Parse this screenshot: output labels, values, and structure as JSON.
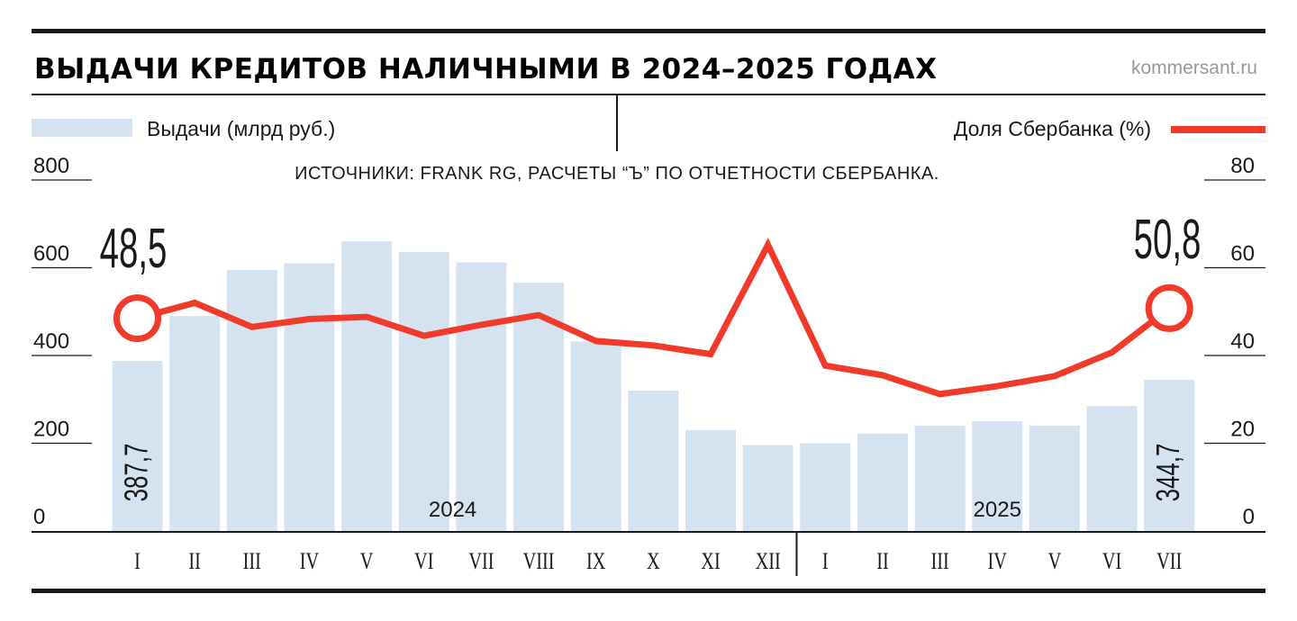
{
  "header": {
    "title": "ВЫДАЧИ КРЕДИТОВ НАЛИЧНЫМИ В 2024–2025 ГОДАХ",
    "brand": "kommersant.ru"
  },
  "legend": {
    "bars": "Выдачи (млрд руб.)",
    "line": "Доля Сбербанка (%)"
  },
  "source": "ИСТОЧНИКИ: FRANK RG, РАСЧЕТЫ “Ъ” ПО ОТЧЕТНОСТИ СБЕРБАНКА.",
  "colors": {
    "bar": "#d5e3f0",
    "line": "#f23a2a",
    "ink": "#1a1a1a"
  },
  "chart_data": {
    "type": "bar",
    "title": "ВЫДАЧИ КРЕДИТОВ НАЛИЧНЫМИ В 2024–2025 ГОДАХ",
    "categories": [
      "I",
      "II",
      "III",
      "IV",
      "V",
      "VI",
      "VII",
      "VIII",
      "IX",
      "X",
      "XI",
      "XII",
      "I",
      "II",
      "III",
      "IV",
      "V",
      "VI",
      "VII"
    ],
    "years": [
      {
        "label": "2024",
        "from": 0,
        "to": 11
      },
      {
        "label": "2025",
        "from": 12,
        "to": 18
      }
    ],
    "series": [
      {
        "name": "Выдачи (млрд руб.)",
        "type": "bar",
        "axis": "left",
        "values": [
          387.7,
          490,
          595,
          610,
          660,
          636,
          612,
          566,
          432,
          320,
          230,
          196,
          200,
          222,
          240,
          250,
          240,
          285,
          344.7
        ]
      },
      {
        "name": "Доля Сбербанка (%)",
        "type": "line",
        "axis": "right",
        "values": [
          48.5,
          52,
          46.5,
          48.3,
          48.8,
          44.5,
          47,
          49.2,
          43.3,
          42.3,
          40.3,
          65.2,
          37.7,
          35.5,
          31.2,
          33,
          35.3,
          40.7,
          50.8
        ]
      }
    ],
    "left_axis": {
      "ylim": [
        0,
        800
      ],
      "ticks": [
        "0",
        "200",
        "400",
        "600",
        "800"
      ]
    },
    "right_axis": {
      "ylim": [
        0,
        80
      ],
      "ticks": [
        "0",
        "20",
        "40",
        "60",
        "80"
      ]
    },
    "annotations": {
      "line_first": "48,5",
      "line_last": "50,8",
      "bar_first": "387,7",
      "bar_last": "344,7"
    },
    "legend_position": "top"
  }
}
